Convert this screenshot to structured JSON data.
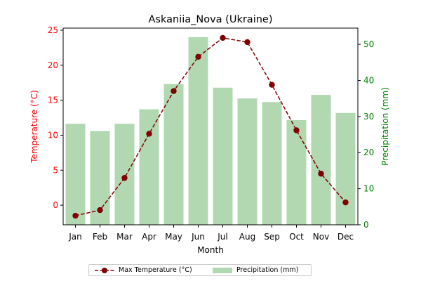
{
  "chart_data": {
    "type": "bar+line",
    "title": "Askaniia_Nova (Ukraine)",
    "xlabel": "Month",
    "ylabel_left": "Temperature (°C)",
    "ylabel_right": "Precipitation (mm)",
    "categories": [
      "Jan",
      "Feb",
      "Mar",
      "Apr",
      "May",
      "Jun",
      "Jul",
      "Aug",
      "Sep",
      "Oct",
      "Nov",
      "Dec"
    ],
    "ylim_left": [
      -2.8,
      25.3
    ],
    "ylim_right": [
      0,
      54.5
    ],
    "yticks_left": [
      0,
      5,
      10,
      15,
      20,
      25
    ],
    "yticks_right": [
      0,
      10,
      20,
      30,
      40,
      50
    ],
    "grid": false,
    "legend_position": "bottom-center",
    "series": [
      {
        "name": "Max Temperature (°C)",
        "type": "line",
        "axis": "left",
        "color": "#800000",
        "marker": "circle",
        "linestyle": "dashed",
        "values": [
          -1.5,
          -0.7,
          3.9,
          10.2,
          16.3,
          21.2,
          23.9,
          23.3,
          17.2,
          10.7,
          4.5,
          0.4
        ]
      },
      {
        "name": "Precipitation (mm)",
        "type": "bar",
        "axis": "right",
        "color": "#b2d8b2",
        "values": [
          28,
          26,
          28,
          32,
          39,
          52,
          38,
          35,
          34,
          29,
          36,
          31
        ]
      }
    ],
    "colors": {
      "left_axis": "#ff0000",
      "right_axis": "#008000"
    }
  }
}
